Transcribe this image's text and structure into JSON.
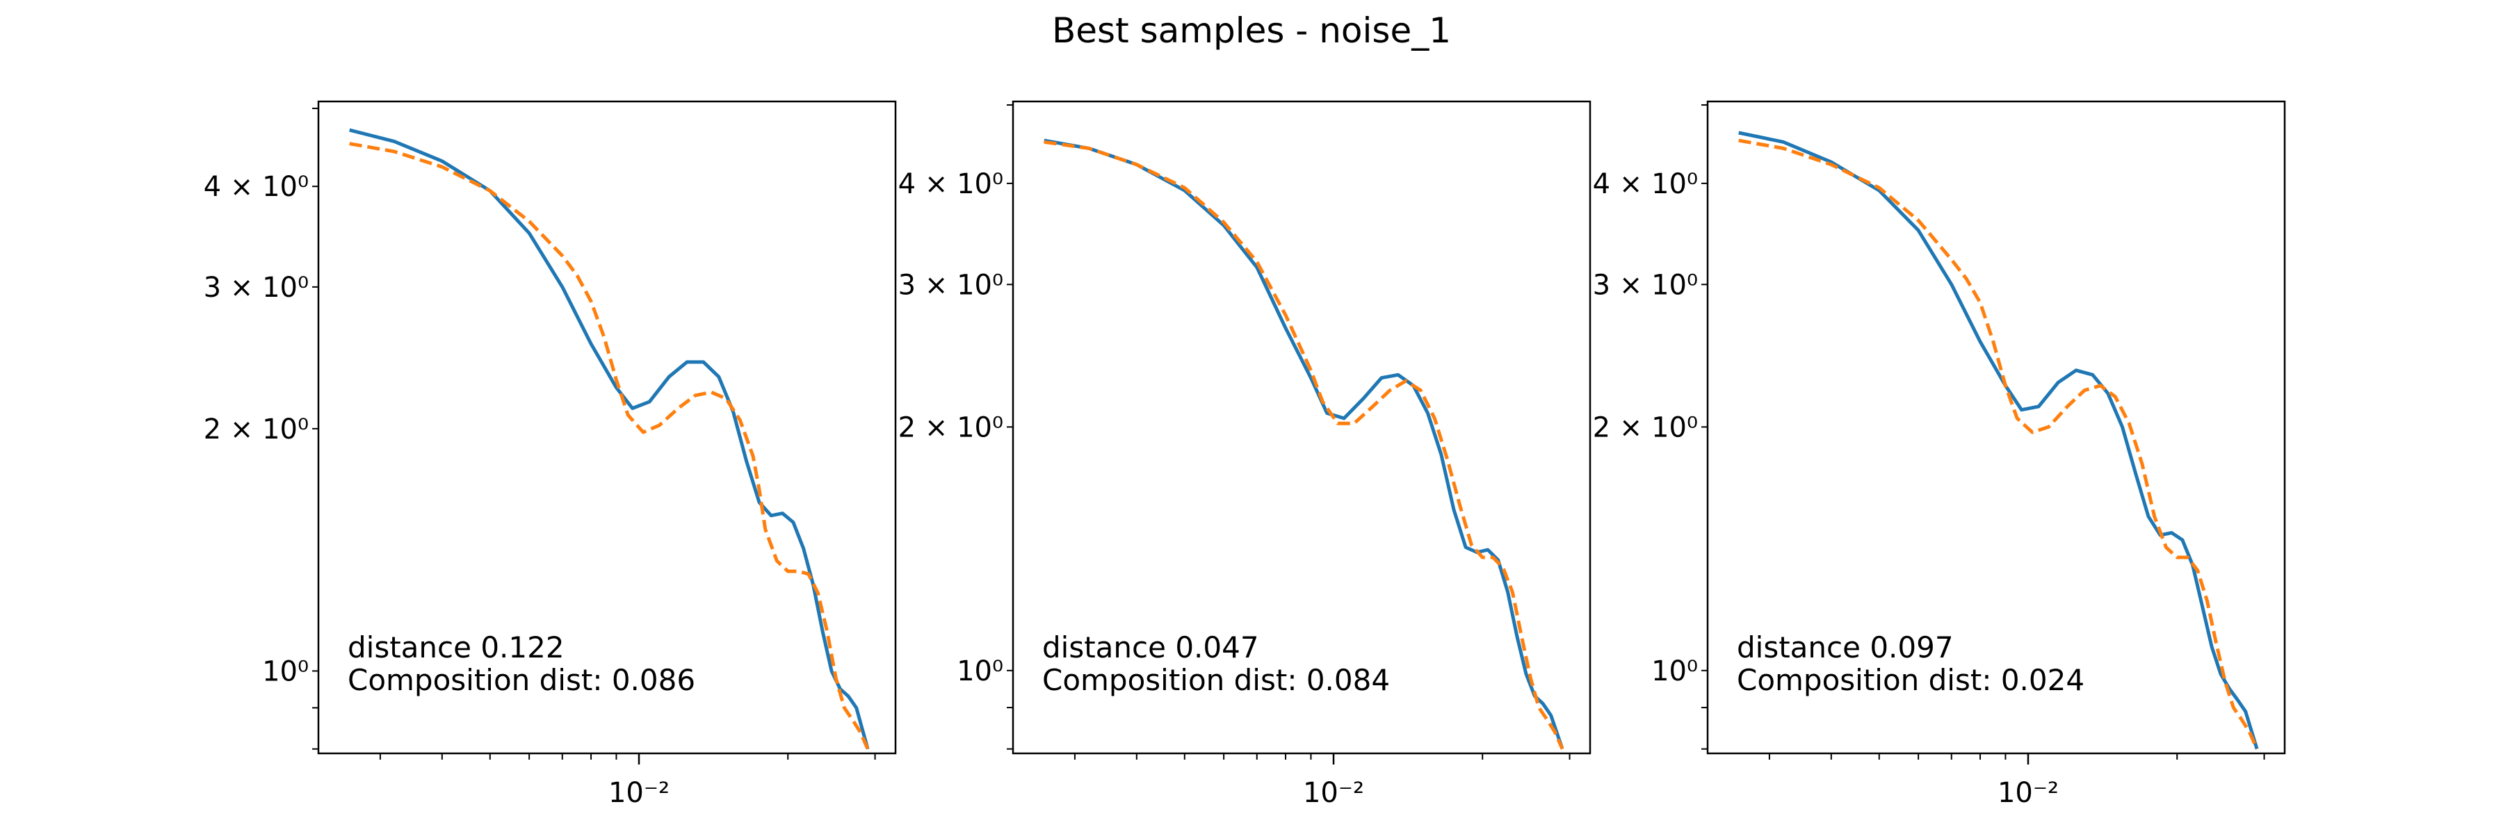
{
  "figure": {
    "title": "Best samples - noise_1"
  },
  "colors": {
    "series_solid": "#1f77b4",
    "series_dashed": "#ff7f0e"
  },
  "chart_data": [
    {
      "type": "line",
      "xscale": "log",
      "yscale": "log",
      "xlim": [
        0.00225,
        0.033
      ],
      "ylim": [
        0.79,
        5.1
      ],
      "x_ticklabels": [
        {
          "value": 0.01,
          "label": "10⁻²"
        }
      ],
      "y_ticklabels": [
        {
          "value": 4,
          "label": "4 × 10⁰"
        },
        {
          "value": 3,
          "label": "3 × 10⁰"
        },
        {
          "value": 2,
          "label": "2 × 10⁰"
        },
        {
          "value": 1,
          "label": "10⁰"
        }
      ],
      "annotation": [
        "distance 0.122",
        "Composition dist: 0.086"
      ],
      "grid": false,
      "series": [
        {
          "style": "solid",
          "color": "#1f77b4",
          "points": [
            [
              0.0026,
              4.7
            ],
            [
              0.0032,
              4.55
            ],
            [
              0.004,
              4.3
            ],
            [
              0.005,
              3.95
            ],
            [
              0.006,
              3.5
            ],
            [
              0.007,
              3.0
            ],
            [
              0.008,
              2.55
            ],
            [
              0.009,
              2.25
            ],
            [
              0.0097,
              2.12
            ],
            [
              0.0105,
              2.16
            ],
            [
              0.0115,
              2.32
            ],
            [
              0.0125,
              2.42
            ],
            [
              0.0135,
              2.42
            ],
            [
              0.0145,
              2.32
            ],
            [
              0.0155,
              2.1
            ],
            [
              0.0165,
              1.82
            ],
            [
              0.0175,
              1.62
            ],
            [
              0.0185,
              1.56
            ],
            [
              0.0195,
              1.57
            ],
            [
              0.0205,
              1.53
            ],
            [
              0.0215,
              1.42
            ],
            [
              0.0225,
              1.28
            ],
            [
              0.0235,
              1.12
            ],
            [
              0.0245,
              1.0
            ],
            [
              0.0255,
              0.95
            ],
            [
              0.0265,
              0.93
            ],
            [
              0.0275,
              0.9
            ],
            [
              0.029,
              0.8
            ]
          ]
        },
        {
          "style": "dashed",
          "color": "#ff7f0e",
          "points": [
            [
              0.0026,
              4.52
            ],
            [
              0.0032,
              4.42
            ],
            [
              0.004,
              4.23
            ],
            [
              0.005,
              3.95
            ],
            [
              0.006,
              3.62
            ],
            [
              0.007,
              3.28
            ],
            [
              0.0075,
              3.1
            ],
            [
              0.008,
              2.88
            ],
            [
              0.0085,
              2.6
            ],
            [
              0.009,
              2.3
            ],
            [
              0.0095,
              2.08
            ],
            [
              0.0102,
              1.98
            ],
            [
              0.011,
              2.02
            ],
            [
              0.012,
              2.12
            ],
            [
              0.013,
              2.2
            ],
            [
              0.014,
              2.22
            ],
            [
              0.015,
              2.18
            ],
            [
              0.016,
              2.05
            ],
            [
              0.017,
              1.85
            ],
            [
              0.0175,
              1.68
            ],
            [
              0.018,
              1.5
            ],
            [
              0.019,
              1.37
            ],
            [
              0.02,
              1.33
            ],
            [
              0.021,
              1.33
            ],
            [
              0.022,
              1.32
            ],
            [
              0.023,
              1.25
            ],
            [
              0.024,
              1.12
            ],
            [
              0.025,
              0.98
            ],
            [
              0.026,
              0.9
            ],
            [
              0.027,
              0.87
            ],
            [
              0.028,
              0.84
            ],
            [
              0.029,
              0.8
            ]
          ]
        }
      ]
    },
    {
      "type": "line",
      "xscale": "log",
      "yscale": "log",
      "xlim": [
        0.00225,
        0.033
      ],
      "ylim": [
        0.79,
        5.05
      ],
      "x_ticklabels": [
        {
          "value": 0.01,
          "label": "10⁻²"
        }
      ],
      "y_ticklabels": [
        {
          "value": 4,
          "label": "4 × 10⁰"
        },
        {
          "value": 3,
          "label": "3 × 10⁰"
        },
        {
          "value": 2,
          "label": "2 × 10⁰"
        },
        {
          "value": 1,
          "label": "10⁰"
        }
      ],
      "annotation": [
        "distance 0.047",
        "Composition dist: 0.084"
      ],
      "grid": false,
      "series": [
        {
          "style": "solid",
          "color": "#1f77b4",
          "points": [
            [
              0.0026,
              4.52
            ],
            [
              0.0032,
              4.42
            ],
            [
              0.004,
              4.22
            ],
            [
              0.005,
              3.92
            ],
            [
              0.006,
              3.55
            ],
            [
              0.007,
              3.15
            ],
            [
              0.008,
              2.65
            ],
            [
              0.009,
              2.3
            ],
            [
              0.0097,
              2.08
            ],
            [
              0.0105,
              2.05
            ],
            [
              0.0115,
              2.17
            ],
            [
              0.0125,
              2.3
            ],
            [
              0.0135,
              2.32
            ],
            [
              0.0145,
              2.25
            ],
            [
              0.0155,
              2.08
            ],
            [
              0.0165,
              1.85
            ],
            [
              0.0175,
              1.58
            ],
            [
              0.0185,
              1.42
            ],
            [
              0.0195,
              1.4
            ],
            [
              0.0205,
              1.41
            ],
            [
              0.0215,
              1.37
            ],
            [
              0.0225,
              1.25
            ],
            [
              0.0235,
              1.1
            ],
            [
              0.0245,
              0.99
            ],
            [
              0.0255,
              0.93
            ],
            [
              0.0265,
              0.91
            ],
            [
              0.0275,
              0.88
            ],
            [
              0.029,
              0.8
            ]
          ]
        },
        {
          "style": "dashed",
          "color": "#ff7f0e",
          "points": [
            [
              0.0026,
              4.5
            ],
            [
              0.0032,
              4.42
            ],
            [
              0.004,
              4.22
            ],
            [
              0.005,
              3.95
            ],
            [
              0.006,
              3.58
            ],
            [
              0.007,
              3.2
            ],
            [
              0.008,
              2.75
            ],
            [
              0.009,
              2.35
            ],
            [
              0.0095,
              2.15
            ],
            [
              0.0102,
              2.02
            ],
            [
              0.011,
              2.02
            ],
            [
              0.012,
              2.12
            ],
            [
              0.013,
              2.22
            ],
            [
              0.014,
              2.28
            ],
            [
              0.015,
              2.22
            ],
            [
              0.016,
              2.05
            ],
            [
              0.017,
              1.82
            ],
            [
              0.018,
              1.6
            ],
            [
              0.019,
              1.43
            ],
            [
              0.02,
              1.38
            ],
            [
              0.021,
              1.38
            ],
            [
              0.022,
              1.34
            ],
            [
              0.023,
              1.25
            ],
            [
              0.024,
              1.1
            ],
            [
              0.025,
              0.98
            ],
            [
              0.026,
              0.9
            ],
            [
              0.027,
              0.87
            ],
            [
              0.028,
              0.84
            ],
            [
              0.029,
              0.8
            ]
          ]
        }
      ]
    },
    {
      "type": "line",
      "xscale": "log",
      "yscale": "log",
      "xlim": [
        0.00225,
        0.033
      ],
      "ylim": [
        0.79,
        5.05
      ],
      "x_ticklabels": [
        {
          "value": 0.01,
          "label": "10⁻²"
        }
      ],
      "y_ticklabels": [
        {
          "value": 4,
          "label": "4 × 10⁰"
        },
        {
          "value": 3,
          "label": "3 × 10⁰"
        },
        {
          "value": 2,
          "label": "2 × 10⁰"
        },
        {
          "value": 1,
          "label": "10⁰"
        }
      ],
      "annotation": [
        "distance 0.097",
        "Composition dist: 0.024"
      ],
      "grid": false,
      "series": [
        {
          "style": "solid",
          "color": "#1f77b4",
          "points": [
            [
              0.0026,
              4.62
            ],
            [
              0.0032,
              4.5
            ],
            [
              0.004,
              4.25
            ],
            [
              0.005,
              3.92
            ],
            [
              0.006,
              3.5
            ],
            [
              0.007,
              3.0
            ],
            [
              0.008,
              2.55
            ],
            [
              0.009,
              2.25
            ],
            [
              0.0097,
              2.1
            ],
            [
              0.0105,
              2.12
            ],
            [
              0.0115,
              2.27
            ],
            [
              0.0125,
              2.35
            ],
            [
              0.0135,
              2.32
            ],
            [
              0.0145,
              2.2
            ],
            [
              0.0155,
              2.0
            ],
            [
              0.0165,
              1.75
            ],
            [
              0.0175,
              1.55
            ],
            [
              0.0185,
              1.47
            ],
            [
              0.0195,
              1.48
            ],
            [
              0.0205,
              1.45
            ],
            [
              0.0215,
              1.35
            ],
            [
              0.0225,
              1.2
            ],
            [
              0.0235,
              1.07
            ],
            [
              0.0245,
              0.99
            ],
            [
              0.0255,
              0.95
            ],
            [
              0.0265,
              0.92
            ],
            [
              0.0275,
              0.89
            ],
            [
              0.029,
              0.8
            ]
          ]
        },
        {
          "style": "dashed",
          "color": "#ff7f0e",
          "points": [
            [
              0.0026,
              4.52
            ],
            [
              0.0032,
              4.42
            ],
            [
              0.004,
              4.22
            ],
            [
              0.005,
              3.95
            ],
            [
              0.006,
              3.6
            ],
            [
              0.007,
              3.22
            ],
            [
              0.0075,
              3.05
            ],
            [
              0.008,
              2.85
            ],
            [
              0.0085,
              2.55
            ],
            [
              0.009,
              2.25
            ],
            [
              0.0095,
              2.05
            ],
            [
              0.0102,
              1.97
            ],
            [
              0.011,
              2.0
            ],
            [
              0.012,
              2.12
            ],
            [
              0.013,
              2.22
            ],
            [
              0.014,
              2.25
            ],
            [
              0.015,
              2.18
            ],
            [
              0.016,
              2.02
            ],
            [
              0.017,
              1.8
            ],
            [
              0.018,
              1.55
            ],
            [
              0.019,
              1.42
            ],
            [
              0.02,
              1.38
            ],
            [
              0.021,
              1.38
            ],
            [
              0.022,
              1.33
            ],
            [
              0.023,
              1.22
            ],
            [
              0.024,
              1.08
            ],
            [
              0.025,
              0.97
            ],
            [
              0.026,
              0.9
            ],
            [
              0.027,
              0.87
            ],
            [
              0.028,
              0.84
            ],
            [
              0.029,
              0.8
            ]
          ]
        }
      ]
    }
  ]
}
